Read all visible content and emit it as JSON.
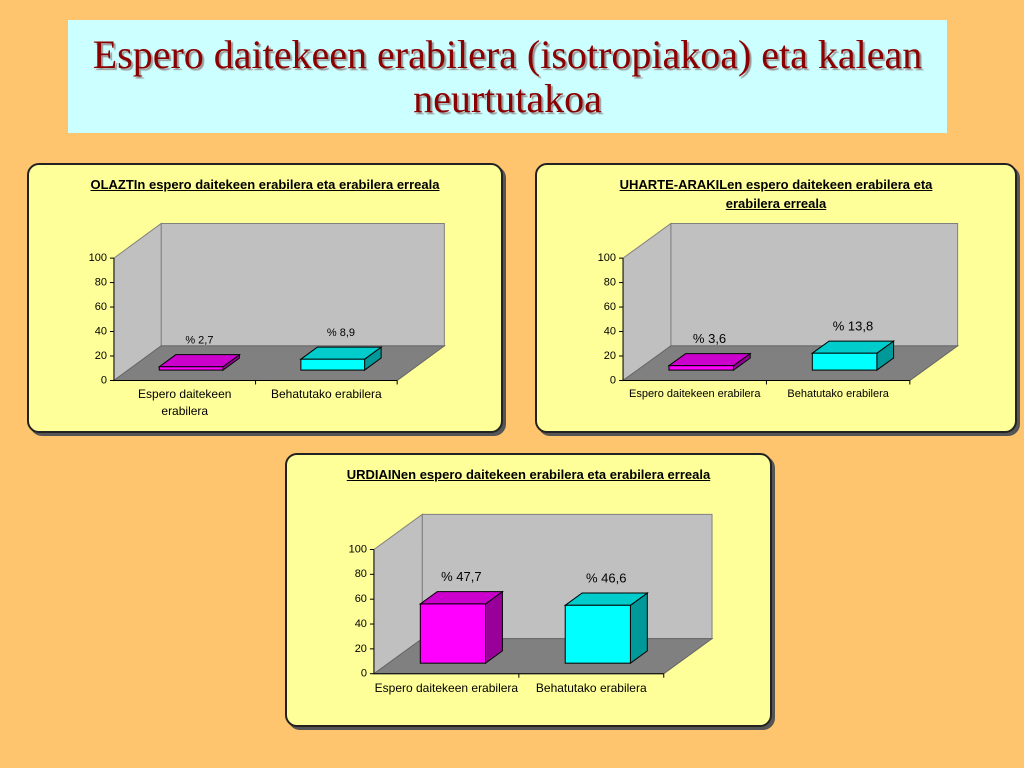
{
  "title": "Espero daitekeen erabilera (isotropiakoa) eta kalean neurtutakoa",
  "chart_data": [
    {
      "type": "bar",
      "title": "OLAZTIn espero daitekeen erabilera eta erabilera erreala",
      "categories": [
        "Espero daitekeen erabilera",
        "Behatutako erabilera"
      ],
      "values": [
        2.7,
        8.9
      ],
      "value_labels": [
        "% 2,7",
        "% 8,9"
      ],
      "colors": [
        "#ff00ff",
        "#00ffff"
      ],
      "ylim": [
        0,
        100
      ],
      "yticks": [
        0,
        20,
        40,
        60,
        80,
        100
      ]
    },
    {
      "type": "bar",
      "title": "UHARTE-ARAKILen espero daitekeen erabilera eta erabilera erreala",
      "categories": [
        "Espero daitekeen erabilera",
        "Behatutako erabilera"
      ],
      "values": [
        3.6,
        13.8
      ],
      "value_labels": [
        "% 3,6",
        "% 13,8"
      ],
      "colors": [
        "#ff00ff",
        "#00ffff"
      ],
      "ylim": [
        0,
        100
      ],
      "yticks": [
        0,
        20,
        40,
        60,
        80,
        100
      ]
    },
    {
      "type": "bar",
      "title": "URDIAINen espero daitekeen erabilera eta erabilera erreala",
      "categories": [
        "Espero daitekeen erabilera",
        "Behatutako erabilera"
      ],
      "values": [
        47.7,
        46.6
      ],
      "value_labels": [
        "% 47,7",
        "% 46,6"
      ],
      "colors": [
        "#ff00ff",
        "#00ffff"
      ],
      "ylim": [
        0,
        100
      ],
      "yticks": [
        0,
        20,
        40,
        60,
        80,
        100
      ]
    }
  ]
}
